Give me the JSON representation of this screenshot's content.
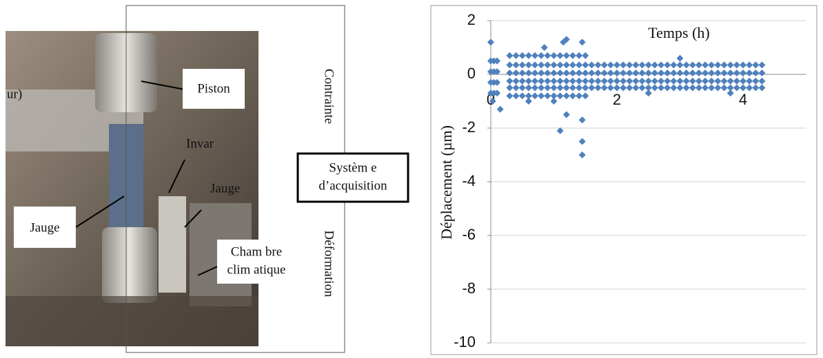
{
  "figure": {
    "labels": {
      "piston": "Piston",
      "invar": "Invar",
      "jauge_right": "Jauge",
      "jauge_left": "Jauge",
      "chambre_1": "Cham bre",
      "chambre_2": "clim atique",
      "contrainte": "Contrainte",
      "deformation": "Déformation",
      "systeme_1": "Systèm e",
      "systeme_2": "d’acquisition",
      "fragment": "ur)"
    }
  },
  "chart_data": {
    "type": "scatter",
    "xlabel": "Temps  (h)",
    "ylabel": "Déplacement  (µm)",
    "color": "#4f81bd",
    "grid": true,
    "xlim": [
      0,
      5
    ],
    "xticks": [
      0,
      2,
      4
    ],
    "ylim": [
      -10,
      2
    ],
    "yticks": [
      -10,
      -8,
      -6,
      -4,
      -2,
      0,
      2
    ],
    "x": [
      0.3,
      0.4,
      0.5,
      0.6,
      0.7,
      0.8,
      0.9,
      1,
      1.1,
      1.2,
      1.3,
      1.4,
      1.5,
      1.6,
      1.7,
      1.8,
      1.9,
      2,
      2.1,
      2.2,
      2.3,
      2.4,
      2.5,
      2.6,
      2.7,
      2.8,
      2.9,
      3,
      3.1,
      3.2,
      3.3,
      3.4,
      3.5,
      3.6,
      3.7,
      3.8,
      3.9,
      4,
      4.1,
      4.2,
      4.3,
      0.3,
      0.4,
      0.5,
      0.6,
      0.7,
      0.8,
      0.9,
      1,
      1.1,
      1.2,
      1.3,
      1.4,
      1.5,
      1.6,
      1.7,
      1.8,
      1.9,
      2,
      2.1,
      2.2,
      2.3,
      2.4,
      2.5,
      2.6,
      2.7,
      2.8,
      2.9,
      3,
      3.1,
      3.2,
      3.3,
      3.4,
      3.5,
      3.6,
      3.7,
      3.8,
      3.9,
      4,
      4.1,
      4.2,
      4.3,
      0.3,
      0.4,
      0.5,
      0.6,
      0.7,
      0.8,
      0.9,
      1,
      1.1,
      1.2,
      1.3,
      1.4,
      1.5,
      1.6,
      1.7,
      1.8,
      1.9,
      2,
      2.1,
      2.2,
      2.3,
      2.4,
      2.5,
      2.6,
      2.7,
      2.8,
      2.9,
      3,
      3.1,
      3.2,
      3.3,
      3.4,
      3.5,
      3.6,
      3.7,
      3.8,
      3.9,
      4,
      4.1,
      4.2,
      4.3,
      0.3,
      0.4,
      0.5,
      0.6,
      0.7,
      0.8,
      0.9,
      1,
      1.1,
      1.2,
      1.3,
      1.4,
      1.5,
      1.6,
      1.7,
      1.8,
      1.9,
      2,
      2.1,
      2.2,
      2.3,
      2.4,
      2.5,
      2.6,
      2.7,
      2.8,
      2.9,
      3,
      3.1,
      3.2,
      3.3,
      3.4,
      3.5,
      3.6,
      3.7,
      3.8,
      3.9,
      4,
      4.1,
      4.2,
      4.3,
      0.3,
      0.4,
      0.5,
      0.6,
      0.7,
      0.8,
      0.9,
      1,
      1.1,
      1.2,
      1.3,
      1.4,
      1.5,
      0.3,
      0.4,
      0.5,
      0.6,
      0.7,
      0.8,
      0.9,
      1,
      1.1,
      1.2,
      1.3,
      1.4,
      1.5,
      0,
      0.05,
      0.1,
      0,
      0.05,
      0.1,
      0,
      0.05,
      0.1,
      0,
      0.05,
      0.1,
      0,
      0.15,
      0.03,
      0.85,
      1.2,
      1.15,
      1.1,
      1.2,
      1.45,
      1.45,
      1.45,
      1.45,
      1,
      0.6,
      2.5,
      3,
      3.8
    ],
    "values": [
      0.35,
      0.35,
      0.35,
      0.35,
      0.35,
      0.35,
      0.35,
      0.35,
      0.35,
      0.35,
      0.35,
      0.35,
      0.35,
      0.35,
      0.35,
      0.35,
      0.35,
      0.35,
      0.35,
      0.35,
      0.35,
      0.35,
      0.35,
      0.35,
      0.35,
      0.35,
      0.35,
      0.35,
      0.35,
      0.35,
      0.35,
      0.35,
      0.35,
      0.35,
      0.35,
      0.35,
      0.35,
      0.35,
      0.35,
      0.35,
      0.35,
      0.05,
      0.05,
      0.05,
      0.05,
      0.05,
      0.05,
      0.05,
      0.05,
      0.05,
      0.05,
      0.05,
      0.05,
      0.05,
      0.05,
      0.05,
      0.05,
      0.05,
      0.05,
      0.05,
      0.05,
      0.05,
      0.05,
      0.05,
      0.05,
      0.05,
      0.05,
      0.05,
      0.05,
      0.05,
      0.05,
      0.05,
      0.05,
      0.05,
      0.05,
      0.05,
      0.05,
      0.05,
      0.05,
      0.05,
      0.05,
      0.05,
      -0.25,
      -0.25,
      -0.25,
      -0.25,
      -0.25,
      -0.25,
      -0.25,
      -0.25,
      -0.25,
      -0.25,
      -0.25,
      -0.25,
      -0.25,
      -0.25,
      -0.25,
      -0.25,
      -0.25,
      -0.25,
      -0.25,
      -0.25,
      -0.25,
      -0.25,
      -0.25,
      -0.25,
      -0.25,
      -0.25,
      -0.25,
      -0.25,
      -0.25,
      -0.25,
      -0.25,
      -0.25,
      -0.25,
      -0.25,
      -0.25,
      -0.25,
      -0.25,
      -0.25,
      -0.25,
      -0.25,
      -0.25,
      -0.5,
      -0.5,
      -0.5,
      -0.5,
      -0.5,
      -0.5,
      -0.5,
      -0.5,
      -0.5,
      -0.5,
      -0.5,
      -0.5,
      -0.5,
      -0.5,
      -0.5,
      -0.5,
      -0.5,
      -0.5,
      -0.5,
      -0.5,
      -0.5,
      -0.5,
      -0.5,
      -0.5,
      -0.5,
      -0.5,
      -0.5,
      -0.5,
      -0.5,
      -0.5,
      -0.5,
      -0.5,
      -0.5,
      -0.5,
      -0.5,
      -0.5,
      -0.5,
      -0.5,
      -0.5,
      -0.5,
      -0.5,
      0.7,
      0.7,
      0.7,
      0.7,
      0.7,
      0.7,
      0.7,
      0.7,
      0.7,
      0.7,
      0.7,
      0.7,
      0.7,
      -0.8,
      -0.8,
      -0.8,
      -0.8,
      -0.8,
      -0.8,
      -0.8,
      -0.8,
      -0.8,
      -0.8,
      -0.8,
      -0.8,
      -0.8,
      0.5,
      0.5,
      0.5,
      0.1,
      0.1,
      0.1,
      -0.3,
      -0.3,
      -0.3,
      -0.7,
      -0.7,
      -0.7,
      1.2,
      -1.3,
      -1,
      1,
      1.3,
      1.2,
      -2.1,
      -1.5,
      1.2,
      -1.7,
      -2.5,
      -3,
      -1,
      -1,
      -0.7,
      0.6,
      -0.7
    ]
  }
}
